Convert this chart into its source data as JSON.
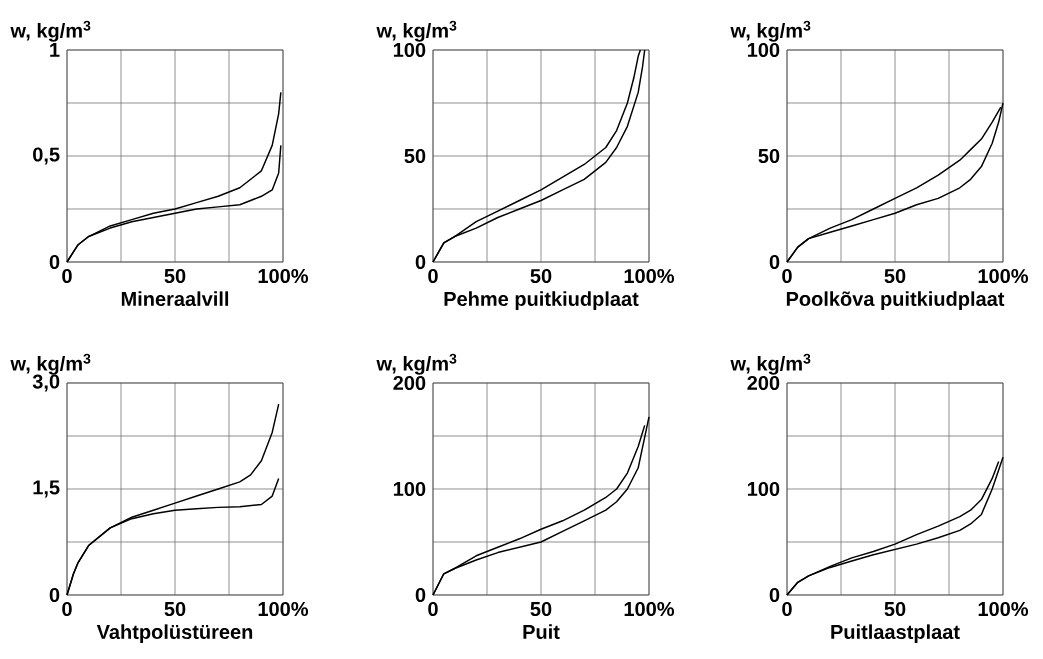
{
  "chart_data": [
    {
      "type": "line",
      "xlabel": "Mineraalvill",
      "ylabel": "w, kg/m$^{3}$",
      "xlim": [
        0,
        100
      ],
      "ylim": [
        0,
        1
      ],
      "xticks": [
        0,
        {
          "value": 25,
          "label": null
        },
        50,
        {
          "value": 75,
          "label": null
        },
        {
          "value": 100,
          "label": "100%"
        }
      ],
      "yticks": [
        0,
        {
          "value": 0.25,
          "label": null
        },
        {
          "value": 0.5,
          "label": "0,5"
        },
        {
          "value": 0.75,
          "label": null
        },
        1
      ],
      "grid": true,
      "marker": "none",
      "line_style": "solid",
      "series": [
        {
          "color": "#000000",
          "x": [
            0,
            5,
            10,
            20,
            30,
            40,
            50,
            60,
            70,
            80,
            90,
            95,
            98,
            99
          ],
          "values": [
            0,
            0.08,
            0.12,
            0.17,
            0.2,
            0.23,
            0.25,
            0.28,
            0.31,
            0.35,
            0.43,
            0.55,
            0.7,
            0.8
          ]
        },
        {
          "color": "#000000",
          "x": [
            0,
            5,
            10,
            20,
            30,
            40,
            50,
            60,
            70,
            80,
            90,
            95,
            98,
            99
          ],
          "values": [
            0,
            0.08,
            0.12,
            0.16,
            0.19,
            0.21,
            0.23,
            0.25,
            0.26,
            0.27,
            0.31,
            0.34,
            0.42,
            0.55
          ]
        }
      ]
    },
    {
      "type": "line",
      "xlabel": "Pehme puitkiudplaat",
      "ylabel": "w, kg/m$^{3}$",
      "xlim": [
        0,
        100
      ],
      "ylim": [
        0,
        100
      ],
      "xticks": [
        0,
        {
          "value": 25,
          "label": null
        },
        50,
        {
          "value": 75,
          "label": null
        },
        {
          "value": 100,
          "label": "100%"
        }
      ],
      "yticks": [
        0,
        {
          "value": 25,
          "label": null
        },
        50,
        {
          "value": 75,
          "label": null
        },
        100
      ],
      "grid": true,
      "marker": "none",
      "line_style": "solid",
      "series": [
        {
          "color": "#000000",
          "x": [
            0,
            5,
            10,
            20,
            30,
            40,
            50,
            60,
            70,
            80,
            85,
            90,
            93,
            95,
            96
          ],
          "values": [
            0,
            9,
            12,
            19,
            24,
            29,
            34,
            40,
            46,
            54,
            62,
            75,
            87,
            97,
            100
          ]
        },
        {
          "color": "#000000",
          "x": [
            0,
            5,
            10,
            20,
            30,
            40,
            50,
            60,
            70,
            80,
            85,
            90,
            95,
            97,
            98
          ],
          "values": [
            0,
            9,
            12,
            16,
            21,
            25,
            29,
            34,
            39,
            47,
            54,
            64,
            80,
            92,
            100
          ]
        }
      ]
    },
    {
      "type": "line",
      "xlabel": "Poolkõva puitkiudplaat",
      "ylabel": "w, kg/m$^{3}$",
      "xlim": [
        0,
        100
      ],
      "ylim": [
        0,
        100
      ],
      "xticks": [
        0,
        {
          "value": 25,
          "label": null
        },
        50,
        {
          "value": 75,
          "label": null
        },
        {
          "value": 100,
          "label": "100%"
        }
      ],
      "yticks": [
        0,
        {
          "value": 25,
          "label": null
        },
        50,
        {
          "value": 75,
          "label": null
        },
        100
      ],
      "grid": true,
      "marker": "none",
      "line_style": "solid",
      "series": [
        {
          "color": "#000000",
          "x": [
            0,
            5,
            10,
            20,
            30,
            40,
            50,
            60,
            70,
            80,
            85,
            90,
            95,
            99
          ],
          "values": [
            0,
            7,
            11,
            16,
            20,
            25,
            30,
            35,
            41,
            48,
            53,
            58,
            66,
            73
          ]
        },
        {
          "color": "#000000",
          "x": [
            0,
            5,
            10,
            20,
            30,
            40,
            50,
            60,
            70,
            80,
            85,
            90,
            95,
            98,
            100
          ],
          "values": [
            0,
            7,
            11,
            14,
            17,
            20,
            23,
            27,
            30,
            35,
            39,
            45,
            56,
            66,
            75
          ]
        }
      ]
    },
    {
      "type": "line",
      "xlabel": "Vahtpolüstüreen",
      "ylabel": "w, kg/m$^{3}$",
      "xlim": [
        0,
        100
      ],
      "ylim": [
        0,
        3
      ],
      "xticks": [
        0,
        {
          "value": 25,
          "label": null
        },
        50,
        {
          "value": 75,
          "label": null
        },
        {
          "value": 100,
          "label": "100%"
        }
      ],
      "yticks": [
        0,
        {
          "value": 0.75,
          "label": null
        },
        {
          "value": 1.5,
          "label": "1,5"
        },
        {
          "value": 2.25,
          "label": null
        },
        {
          "value": 3,
          "label": "3,0"
        }
      ],
      "grid": true,
      "marker": "none",
      "line_style": "solid",
      "series": [
        {
          "color": "#000000",
          "x": [
            0,
            3,
            5,
            10,
            20,
            30,
            40,
            50,
            60,
            70,
            80,
            85,
            90,
            95,
            98
          ],
          "values": [
            0,
            0.3,
            0.45,
            0.7,
            0.95,
            1.1,
            1.2,
            1.3,
            1.4,
            1.5,
            1.6,
            1.7,
            1.9,
            2.3,
            2.7
          ]
        },
        {
          "color": "#000000",
          "x": [
            0,
            3,
            5,
            10,
            20,
            30,
            40,
            50,
            60,
            70,
            80,
            90,
            95,
            98
          ],
          "values": [
            0,
            0.3,
            0.45,
            0.7,
            0.95,
            1.08,
            1.15,
            1.2,
            1.22,
            1.24,
            1.25,
            1.28,
            1.4,
            1.65
          ]
        }
      ]
    },
    {
      "type": "line",
      "xlabel": "Puit",
      "ylabel": "w, kg/m$^{3}$",
      "xlim": [
        0,
        100
      ],
      "ylim": [
        0,
        200
      ],
      "xticks": [
        0,
        {
          "value": 25,
          "label": null
        },
        50,
        {
          "value": 75,
          "label": null
        },
        {
          "value": 100,
          "label": "100%"
        }
      ],
      "yticks": [
        0,
        {
          "value": 50,
          "label": null
        },
        100,
        {
          "value": 150,
          "label": null
        },
        200
      ],
      "grid": true,
      "marker": "none",
      "line_style": "solid",
      "series": [
        {
          "color": "#000000",
          "x": [
            0,
            5,
            10,
            20,
            30,
            40,
            50,
            60,
            70,
            80,
            85,
            90,
            95,
            98
          ],
          "values": [
            0,
            20,
            25,
            37,
            45,
            53,
            62,
            70,
            80,
            92,
            100,
            115,
            140,
            160
          ]
        },
        {
          "color": "#000000",
          "x": [
            0,
            5,
            10,
            20,
            30,
            40,
            50,
            60,
            70,
            80,
            85,
            90,
            95,
            100
          ],
          "values": [
            0,
            20,
            25,
            33,
            40,
            45,
            50,
            60,
            70,
            80,
            88,
            100,
            120,
            168
          ]
        }
      ]
    },
    {
      "type": "line",
      "xlabel": "Puitlaastplaat",
      "ylabel": "w, kg/m$^{3}$",
      "xlim": [
        0,
        100
      ],
      "ylim": [
        0,
        200
      ],
      "xticks": [
        0,
        {
          "value": 25,
          "label": null
        },
        50,
        {
          "value": 75,
          "label": null
        },
        {
          "value": 100,
          "label": "100%"
        }
      ],
      "yticks": [
        0,
        {
          "value": 50,
          "label": null
        },
        100,
        {
          "value": 150,
          "label": null
        },
        200
      ],
      "grid": true,
      "marker": "none",
      "line_style": "solid",
      "series": [
        {
          "color": "#000000",
          "x": [
            0,
            5,
            10,
            20,
            30,
            40,
            50,
            60,
            70,
            80,
            85,
            90,
            95,
            98
          ],
          "values": [
            0,
            12,
            18,
            27,
            35,
            41,
            48,
            57,
            65,
            74,
            80,
            90,
            110,
            126
          ]
        },
        {
          "color": "#000000",
          "x": [
            0,
            5,
            10,
            20,
            30,
            40,
            50,
            60,
            70,
            80,
            85,
            90,
            95,
            100
          ],
          "values": [
            0,
            12,
            18,
            26,
            32,
            38,
            43,
            48,
            54,
            61,
            67,
            76,
            100,
            130
          ]
        }
      ]
    }
  ]
}
